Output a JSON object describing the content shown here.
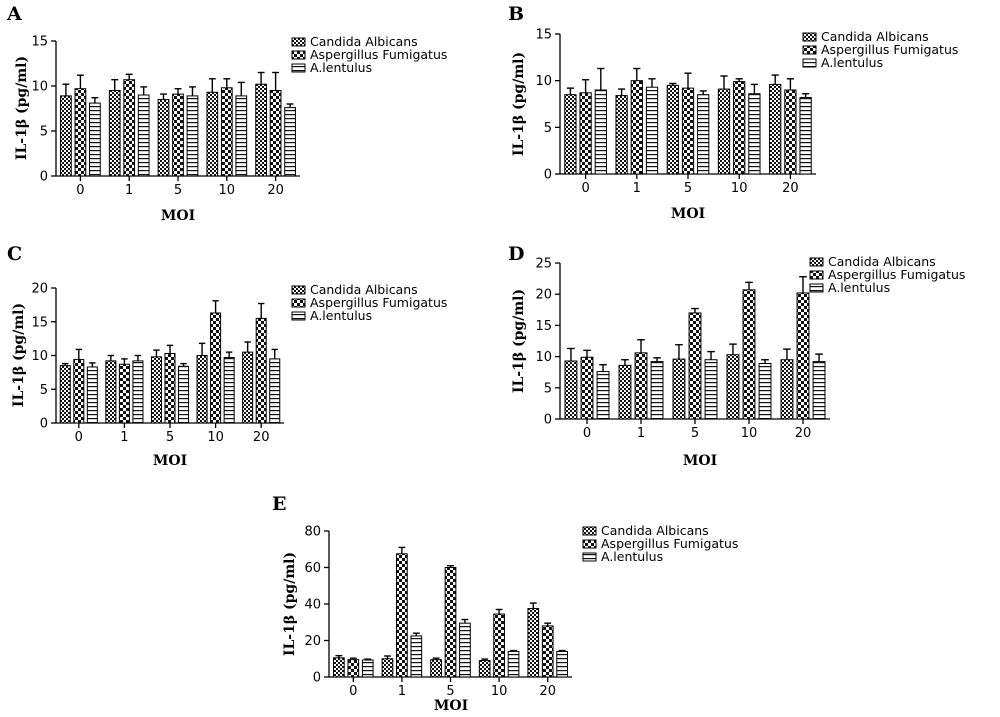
{
  "chart_data": [
    {
      "panel": "A",
      "type": "bar",
      "ylabel": "IL-1β (pg/ml)",
      "xlabel": "MOI",
      "categories": [
        "0",
        "1",
        "5",
        "10",
        "20"
      ],
      "ylim": [
        0,
        15
      ],
      "yticks": [
        0,
        5,
        10,
        15
      ],
      "legend_position": "top-right",
      "series": [
        {
          "name": "Candida Albicans",
          "values": [
            8.9,
            9.5,
            8.5,
            9.3,
            10.2
          ],
          "errors": [
            1.3,
            1.2,
            0.6,
            1.5,
            1.3
          ]
        },
        {
          "name": "Aspergillus Fumigatus",
          "values": [
            9.7,
            10.7,
            9.1,
            9.8,
            9.5
          ],
          "errors": [
            1.5,
            0.6,
            0.6,
            1.0,
            2.0
          ]
        },
        {
          "name": "A.lentulus",
          "values": [
            8.1,
            9.0,
            8.9,
            8.9,
            7.6
          ],
          "errors": [
            0.6,
            0.9,
            1.0,
            1.5,
            0.4
          ]
        }
      ]
    },
    {
      "panel": "B",
      "type": "bar",
      "ylabel": "IL-1β (pg/ml)",
      "xlabel": "MOI",
      "categories": [
        "0",
        "1",
        "5",
        "10",
        "20"
      ],
      "ylim": [
        0,
        15
      ],
      "yticks": [
        0,
        5,
        10,
        15
      ],
      "legend_position": "top-right",
      "series": [
        {
          "name": "Candida Albicans",
          "values": [
            8.5,
            8.4,
            9.5,
            9.1,
            9.6
          ],
          "errors": [
            0.7,
            0.7,
            0.2,
            1.4,
            1.0
          ]
        },
        {
          "name": "Aspergillus Fumigatus",
          "values": [
            8.7,
            10.0,
            9.2,
            9.9,
            9.0
          ],
          "errors": [
            1.4,
            1.3,
            1.6,
            0.3,
            1.2
          ]
        },
        {
          "name": "A.lentulus",
          "values": [
            9.0,
            9.3,
            8.5,
            8.6,
            8.2
          ],
          "errors": [
            2.3,
            0.9,
            0.4,
            1.0,
            0.4
          ]
        }
      ]
    },
    {
      "panel": "C",
      "type": "bar",
      "ylabel": "IL-1β (pg/ml)",
      "xlabel": "MOI",
      "categories": [
        "0",
        "1",
        "5",
        "10",
        "20"
      ],
      "ylim": [
        0,
        20
      ],
      "yticks": [
        0,
        5,
        10,
        15,
        20
      ],
      "legend_position": "top-right",
      "series": [
        {
          "name": "Candida Albicans",
          "values": [
            8.5,
            9.2,
            9.8,
            10.0,
            10.5
          ],
          "errors": [
            0.3,
            0.8,
            1.0,
            1.8,
            1.5
          ]
        },
        {
          "name": "Aspergillus Fumigatus",
          "values": [
            9.4,
            8.7,
            10.3,
            16.3,
            15.5
          ],
          "errors": [
            1.5,
            0.8,
            1.2,
            1.8,
            2.2
          ]
        },
        {
          "name": "A.lentulus",
          "values": [
            8.3,
            9.2,
            8.4,
            9.7,
            9.5
          ],
          "errors": [
            0.6,
            0.8,
            0.4,
            0.8,
            1.4
          ]
        }
      ]
    },
    {
      "panel": "D",
      "type": "bar",
      "ylabel": "IL-1β (pg/ml)",
      "xlabel": "MOI",
      "categories": [
        "0",
        "1",
        "5",
        "10",
        "20"
      ],
      "ylim": [
        0,
        25
      ],
      "yticks": [
        0,
        5,
        10,
        15,
        20,
        25
      ],
      "legend_position": "top-right",
      "series": [
        {
          "name": "Candida Albicans",
          "values": [
            9.3,
            8.6,
            9.6,
            10.3,
            9.5
          ],
          "errors": [
            2.0,
            0.9,
            2.3,
            1.7,
            1.7
          ]
        },
        {
          "name": "Aspergillus Fumigatus",
          "values": [
            9.9,
            10.6,
            17.0,
            20.7,
            20.2
          ],
          "errors": [
            1.1,
            2.1,
            0.7,
            1.2,
            2.6
          ]
        },
        {
          "name": "A.lentulus",
          "values": [
            7.6,
            9.2,
            9.5,
            8.9,
            9.2
          ],
          "errors": [
            1.1,
            0.6,
            1.3,
            0.6,
            1.2
          ]
        }
      ]
    },
    {
      "panel": "E",
      "type": "bar",
      "ylabel": "IL-1β (pg/ml)",
      "xlabel": "MOI",
      "categories": [
        "0",
        "1",
        "5",
        "10",
        "20"
      ],
      "ylim": [
        0,
        80
      ],
      "yticks": [
        0,
        20,
        40,
        60,
        80
      ],
      "legend_position": "top-right",
      "series": [
        {
          "name": "Candida Albicans",
          "values": [
            10.5,
            10.0,
            9.5,
            9.0,
            37.5
          ],
          "errors": [
            1.2,
            1.5,
            0.8,
            0.8,
            3.0
          ]
        },
        {
          "name": "Aspergillus Fumigatus",
          "values": [
            9.5,
            67.5,
            60.0,
            34.5,
            28.0
          ],
          "errors": [
            0.8,
            3.5,
            1.0,
            2.5,
            1.5
          ]
        },
        {
          "name": "A.lentulus",
          "values": [
            9.3,
            22.5,
            29.5,
            14.0,
            14.0
          ],
          "errors": [
            0.5,
            1.5,
            2.0,
            0.5,
            0.5
          ]
        }
      ]
    }
  ]
}
